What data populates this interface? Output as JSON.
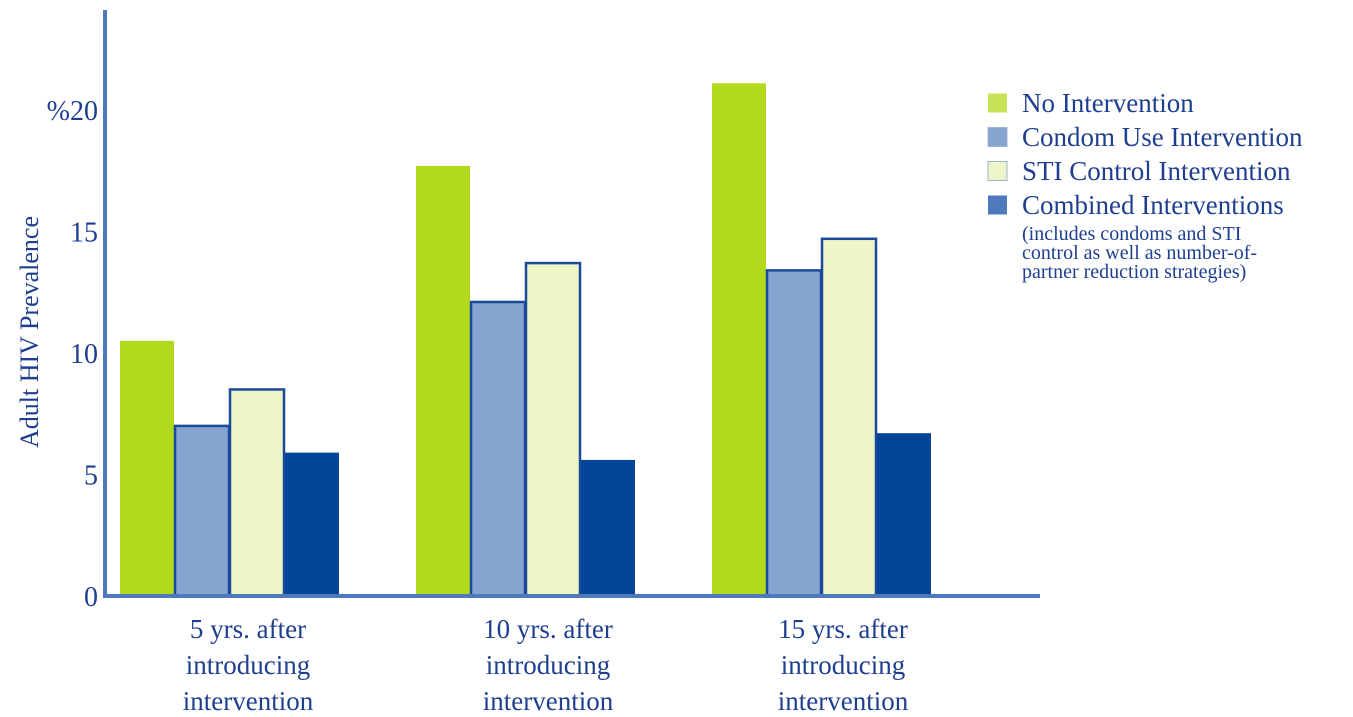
{
  "chart_data": {
    "type": "bar",
    "title": "",
    "ylabel": "Adult HIV Prevalence",
    "xlabel": "",
    "ylim": [
      0,
      24
    ],
    "y_ticks": [
      {
        "value": 0,
        "label": "0"
      },
      {
        "value": 5,
        "label": "5"
      },
      {
        "value": 10,
        "label": "10"
      },
      {
        "value": 15,
        "label": "15"
      },
      {
        "value": 20,
        "label": "%20"
      }
    ],
    "categories": [
      [
        "5 yrs. after",
        "introducing",
        "intervention"
      ],
      [
        "10 yrs. after",
        "introducing",
        "intervention"
      ],
      [
        "15 yrs. after",
        "introducing",
        "intervention"
      ]
    ],
    "series": [
      {
        "name": "No Intervention",
        "color": "#b3d91f",
        "outline": false,
        "values": [
          10.5,
          17.7,
          21.1
        ]
      },
      {
        "name": "Condom Use Intervention",
        "color": "#86a4d0",
        "outline": true,
        "values": [
          7.0,
          12.1,
          13.4
        ]
      },
      {
        "name": "STI Control Intervention",
        "color": "#eef5c8",
        "outline": true,
        "values": [
          8.5,
          13.7,
          14.7
        ]
      },
      {
        "name": "Combined Interventions",
        "color": "#024497",
        "outline": false,
        "values": [
          5.9,
          5.6,
          6.7
        ]
      }
    ],
    "legend": {
      "position": "right",
      "swatch_colors": [
        "#c7e356",
        "#86a4d0",
        "#eef5c8",
        "#4f79bd"
      ],
      "note": [
        "(includes condoms and STI",
        "control as well as number-of-",
        "partner reduction strategies)"
      ]
    },
    "axis_color": "#4f79bd",
    "grid": false
  }
}
